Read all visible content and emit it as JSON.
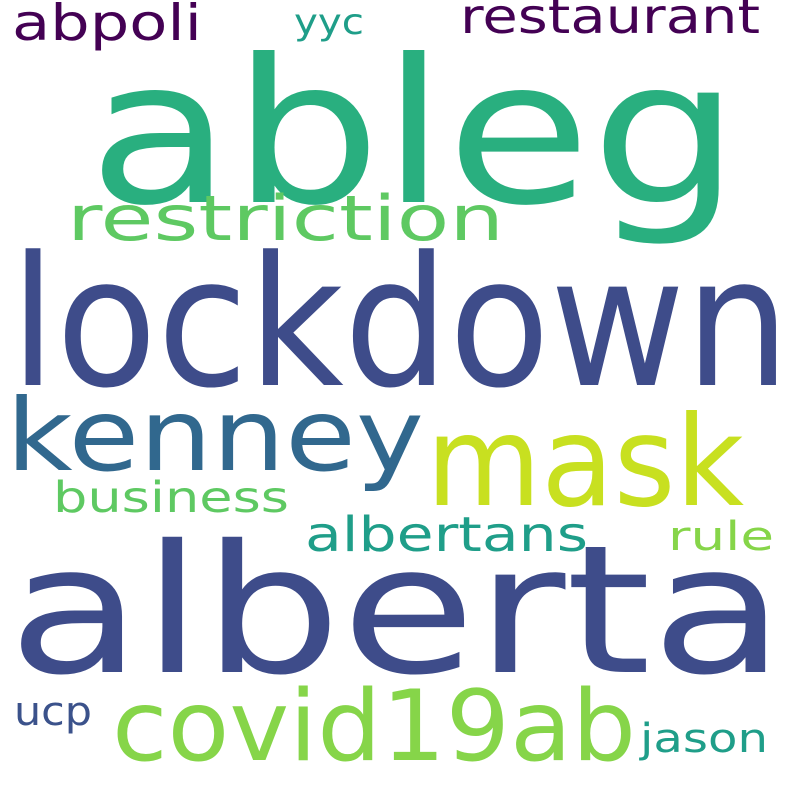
{
  "words": [
    {
      "text": "ableg",
      "color": "#29af7f"
    },
    {
      "text": "lockdown",
      "color": "#3e4c8a"
    },
    {
      "text": "alberta",
      "color": "#3e4c8a"
    },
    {
      "text": "kenney",
      "color": "#31688e"
    },
    {
      "text": "mask",
      "color": "#c8e020"
    },
    {
      "text": "covid19ab",
      "color": "#86d549"
    },
    {
      "text": "restriction",
      "color": "#5ec962"
    },
    {
      "text": "restaurant",
      "color": "#440154"
    },
    {
      "text": "abpoli",
      "color": "#440154"
    },
    {
      "text": "yyc",
      "color": "#1f9e89"
    },
    {
      "text": "business",
      "color": "#5ec962"
    },
    {
      "text": "albertans",
      "color": "#1f9e89"
    },
    {
      "text": "rule",
      "color": "#86d549"
    },
    {
      "text": "ucp",
      "color": "#3b528b"
    },
    {
      "text": "jason",
      "color": "#1f9e89"
    }
  ]
}
